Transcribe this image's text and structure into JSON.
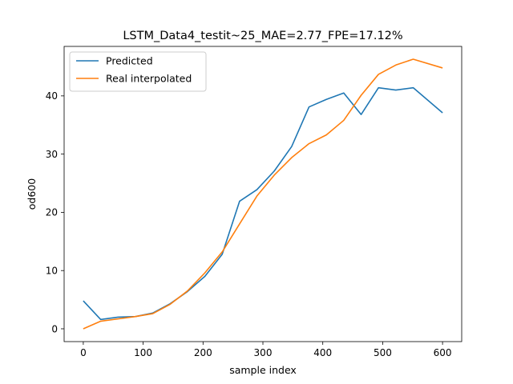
{
  "chart_data": {
    "type": "line",
    "title": "LSTM_Data4_testit~25_MAE=2.77_FPE=17.12%",
    "xlabel": "sample index",
    "ylabel": "od600",
    "xlim": [
      -32,
      632
    ],
    "ylim": [
      -2.2,
      48.5
    ],
    "xticks": [
      0,
      100,
      200,
      300,
      400,
      500,
      600
    ],
    "yticks": [
      0,
      10,
      20,
      30,
      40
    ],
    "grid": false,
    "legend_position": "top-left",
    "series": [
      {
        "name": "Predicted",
        "color": "#1f77b4",
        "x": [
          0,
          29,
          58,
          87,
          116,
          145,
          174,
          203,
          232,
          261,
          290,
          319,
          348,
          377,
          406,
          435,
          464,
          493,
          522,
          551,
          600
        ],
        "y": [
          4.8,
          1.6,
          2.0,
          2.1,
          2.7,
          4.3,
          6.4,
          9.0,
          12.8,
          21.9,
          23.9,
          27.1,
          31.3,
          38.1,
          39.4,
          40.5,
          36.8,
          41.4,
          41.0,
          41.4,
          37.1
        ]
      },
      {
        "name": "Real interpolated",
        "color": "#ff7f0e",
        "x": [
          0,
          29,
          58,
          87,
          116,
          145,
          174,
          203,
          232,
          261,
          290,
          319,
          348,
          377,
          406,
          435,
          464,
          493,
          522,
          551,
          600
        ],
        "y": [
          0.0,
          1.3,
          1.7,
          2.1,
          2.6,
          4.2,
          6.5,
          9.6,
          13.2,
          18.0,
          22.8,
          26.4,
          29.4,
          31.8,
          33.3,
          35.8,
          40.1,
          43.7,
          45.3,
          46.3,
          44.8
        ]
      }
    ]
  }
}
